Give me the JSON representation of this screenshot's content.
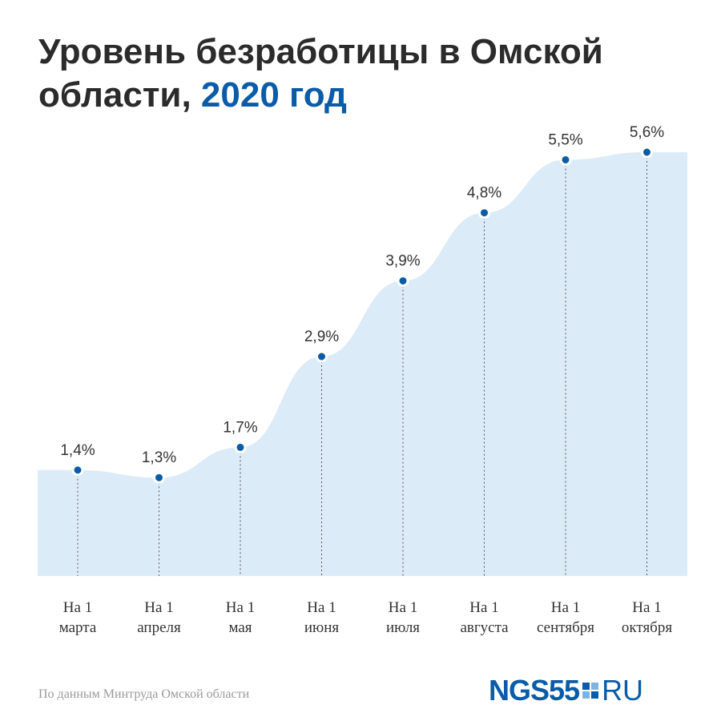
{
  "title": {
    "main": "Уровень безработицы в Омской области, ",
    "accent": "2020 год"
  },
  "chart_data": {
    "type": "area",
    "categories": [
      [
        "На 1",
        "марта"
      ],
      [
        "На 1",
        "апреля"
      ],
      [
        "На 1",
        "мая"
      ],
      [
        "На 1",
        "июня"
      ],
      [
        "На 1",
        "июля"
      ],
      [
        "На 1",
        "августа"
      ],
      [
        "На 1",
        "сентября"
      ],
      [
        "На 1",
        "октября"
      ]
    ],
    "values": [
      1.4,
      1.3,
      1.7,
      2.9,
      3.9,
      4.8,
      5.5,
      5.6
    ],
    "value_labels": [
      "1,4%",
      "1,3%",
      "1,7%",
      "2,9%",
      "3,9%",
      "4,8%",
      "5,5%",
      "5,6%"
    ],
    "unit": "%",
    "ylim": [
      0,
      5.6
    ],
    "grid": false,
    "colors": {
      "area": "#dcebf8",
      "point": "#0b5ca8",
      "point_border": "#ffffff",
      "guide": "#555555"
    }
  },
  "source": "По данным Минтруда Омской области",
  "logo": {
    "main": "NGS55",
    "suffix": "RU"
  }
}
